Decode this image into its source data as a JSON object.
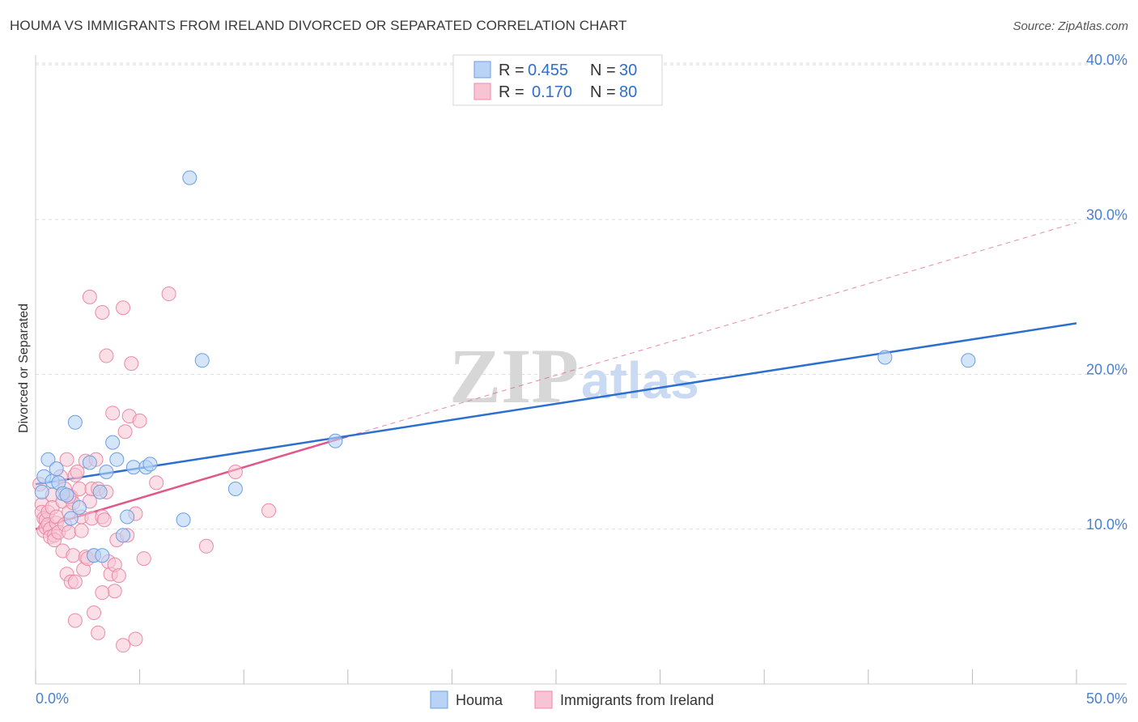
{
  "title": "HOUMA VS IMMIGRANTS FROM IRELAND DIVORCED OR SEPARATED CORRELATION CHART",
  "source": "Source: ZipAtlas.com",
  "watermark": {
    "zip": "ZIP",
    "atlas": "atlas"
  },
  "colors": {
    "houma_fill": "#b8d3f5",
    "houma_stroke": "#6b9fe0",
    "houma_line": "#2c6fd1",
    "ireland_fill": "#f8c4d3",
    "ireland_stroke": "#ec8aa8",
    "ireland_line": "#e0588a",
    "tick_text": "#4a80d0",
    "grid": "#dddddd"
  },
  "legend": {
    "rows": [
      {
        "r_label": "R =",
        "r_value": "0.455",
        "n_label": "N =",
        "n_value": "30"
      },
      {
        "r_label": "R =",
        "r_value": "0.170",
        "n_label": "N =",
        "n_value": "80"
      }
    ]
  },
  "bottom_legend": {
    "houma": "Houma",
    "ireland": "Immigrants from Ireland"
  },
  "chart_data": {
    "type": "scatter",
    "title": "HOUMA VS IMMIGRANTS FROM IRELAND DIVORCED OR SEPARATED CORRELATION CHART",
    "xlabel": "",
    "ylabel": "Divorced or Separated",
    "xlim": [
      0,
      50
    ],
    "ylim": [
      0,
      40
    ],
    "x_tick_labels": [
      "0.0%",
      "50.0%"
    ],
    "y_ticks": [
      10,
      20,
      30,
      40
    ],
    "y_tick_labels": [
      "10.0%",
      "20.0%",
      "30.0%",
      "40.0%"
    ],
    "grid": true,
    "legend_position": "top-center",
    "series": [
      {
        "name": "Houma",
        "r": 0.455,
        "n": 30,
        "points": [
          [
            0.3,
            12.4
          ],
          [
            0.4,
            13.4
          ],
          [
            0.6,
            14.5
          ],
          [
            0.8,
            13.1
          ],
          [
            1.0,
            13.9
          ],
          [
            1.1,
            13.0
          ],
          [
            1.3,
            12.3
          ],
          [
            1.5,
            12.2
          ],
          [
            1.7,
            10.7
          ],
          [
            1.9,
            16.9
          ],
          [
            2.1,
            11.4
          ],
          [
            2.6,
            14.3
          ],
          [
            2.8,
            8.3
          ],
          [
            3.1,
            12.4
          ],
          [
            3.2,
            8.3
          ],
          [
            3.4,
            13.7
          ],
          [
            3.7,
            15.6
          ],
          [
            3.9,
            14.5
          ],
          [
            4.2,
            9.6
          ],
          [
            4.4,
            10.8
          ],
          [
            4.7,
            14.0
          ],
          [
            5.3,
            14.0
          ],
          [
            5.5,
            14.2
          ],
          [
            7.1,
            10.6
          ],
          [
            7.4,
            32.7
          ],
          [
            8.0,
            20.9
          ],
          [
            9.6,
            12.6
          ],
          [
            14.4,
            15.7
          ],
          [
            40.8,
            21.1
          ],
          [
            44.8,
            20.9
          ]
        ],
        "trend": {
          "x": [
            0,
            50
          ],
          "y": [
            12.9,
            23.3
          ],
          "dashed": false
        }
      },
      {
        "name": "Immigrants from Ireland",
        "r": 0.17,
        "n": 80,
        "points": [
          [
            0.2,
            12.9
          ],
          [
            0.3,
            11.6
          ],
          [
            0.3,
            11.1
          ],
          [
            0.4,
            10.7
          ],
          [
            0.4,
            9.9
          ],
          [
            0.5,
            10.6
          ],
          [
            0.5,
            10.1
          ],
          [
            0.6,
            11.1
          ],
          [
            0.6,
            10.3
          ],
          [
            0.7,
            10.0
          ],
          [
            0.7,
            9.5
          ],
          [
            0.8,
            12.2
          ],
          [
            0.8,
            11.4
          ],
          [
            0.9,
            9.6
          ],
          [
            0.9,
            9.3
          ],
          [
            1.0,
            10.4
          ],
          [
            1.0,
            10.8
          ],
          [
            1.1,
            9.8
          ],
          [
            1.2,
            13.4
          ],
          [
            1.3,
            11.8
          ],
          [
            1.3,
            8.6
          ],
          [
            1.4,
            12.6
          ],
          [
            1.4,
            10.3
          ],
          [
            1.5,
            14.5
          ],
          [
            1.5,
            7.1
          ],
          [
            1.6,
            11.1
          ],
          [
            1.6,
            9.8
          ],
          [
            1.7,
            12.1
          ],
          [
            1.7,
            6.6
          ],
          [
            1.8,
            11.7
          ],
          [
            1.8,
            8.3
          ],
          [
            1.9,
            13.5
          ],
          [
            1.9,
            6.6
          ],
          [
            1.9,
            4.1
          ],
          [
            2.0,
            13.7
          ],
          [
            2.1,
            12.6
          ],
          [
            2.2,
            10.8
          ],
          [
            2.2,
            9.9
          ],
          [
            2.3,
            7.4
          ],
          [
            2.4,
            14.4
          ],
          [
            2.4,
            8.2
          ],
          [
            2.5,
            8.1
          ],
          [
            2.6,
            11.8
          ],
          [
            2.6,
            25.0
          ],
          [
            2.7,
            12.6
          ],
          [
            2.7,
            10.7
          ],
          [
            2.8,
            8.3
          ],
          [
            2.8,
            4.6
          ],
          [
            2.9,
            14.5
          ],
          [
            3.0,
            12.6
          ],
          [
            3.0,
            3.3
          ],
          [
            3.2,
            24.0
          ],
          [
            3.2,
            10.8
          ],
          [
            3.3,
            10.6
          ],
          [
            3.4,
            21.2
          ],
          [
            3.4,
            12.4
          ],
          [
            3.5,
            7.9
          ],
          [
            3.6,
            7.1
          ],
          [
            3.7,
            17.5
          ],
          [
            3.8,
            7.7
          ],
          [
            3.8,
            6.0
          ],
          [
            3.9,
            9.3
          ],
          [
            4.0,
            7.0
          ],
          [
            4.2,
            24.3
          ],
          [
            4.2,
            2.5
          ],
          [
            4.3,
            16.3
          ],
          [
            4.4,
            9.6
          ],
          [
            4.5,
            17.3
          ],
          [
            4.6,
            20.7
          ],
          [
            4.8,
            11.0
          ],
          [
            4.8,
            2.9
          ],
          [
            5.0,
            17.0
          ],
          [
            5.2,
            8.1
          ],
          [
            5.8,
            13.0
          ],
          [
            6.4,
            25.2
          ],
          [
            8.2,
            8.9
          ],
          [
            9.6,
            13.7
          ],
          [
            11.2,
            11.2
          ],
          [
            3.2,
            5.9
          ],
          [
            1.6,
            12.1
          ]
        ],
        "trend": {
          "x": [
            0,
            15
          ],
          "y": [
            10.0,
            16.0
          ],
          "dashed": false
        },
        "trend_extension": {
          "x": [
            15,
            50
          ],
          "y": [
            16.0,
            29.8
          ],
          "dashed": true
        }
      }
    ]
  }
}
